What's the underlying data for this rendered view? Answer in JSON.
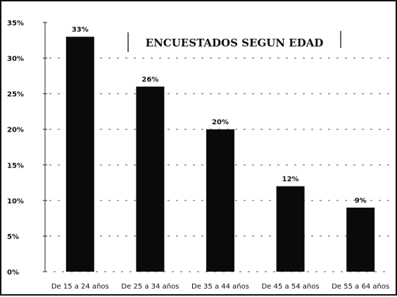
{
  "chart_data": {
    "type": "bar",
    "title": "ENCUESTADOS SEGUN EDAD",
    "categories": [
      "De 15 a 24 años",
      "De 25 a 34 años",
      "De 35 a 44 años",
      "De 45 a 54 años",
      "De 55 a 64 años"
    ],
    "values": [
      33,
      26,
      20,
      12,
      9
    ],
    "data_labels": [
      "33%",
      "26%",
      "20%",
      "12%",
      "9%"
    ],
    "ylim": [
      0,
      35
    ],
    "y_ticks": [
      0,
      5,
      10,
      15,
      20,
      25,
      30,
      35
    ],
    "y_tick_labels": [
      "0%",
      "5%",
      "10%",
      "15%",
      "20%",
      "25%",
      "30%",
      "35%"
    ],
    "xlabel": "",
    "ylabel": "",
    "grid": true,
    "legend": "none",
    "bar_color": "#0a0a0a"
  }
}
